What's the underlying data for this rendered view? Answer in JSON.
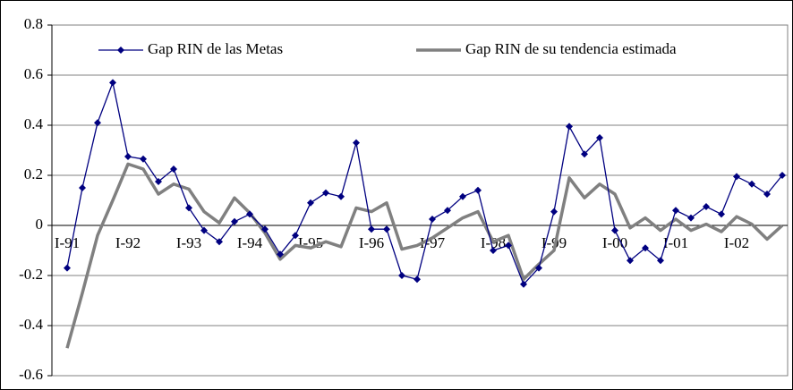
{
  "chart_data": {
    "type": "line",
    "categories": [
      "I-91",
      null,
      null,
      null,
      "I-92",
      null,
      null,
      null,
      "I-93",
      null,
      null,
      null,
      "I-94",
      null,
      null,
      null,
      "I-95",
      null,
      null,
      null,
      "I-96",
      null,
      null,
      null,
      "I-97",
      null,
      null,
      null,
      "I-98",
      null,
      null,
      null,
      "I-99",
      null,
      null,
      null,
      "I-00",
      null,
      null,
      null,
      "I-01",
      null,
      null,
      null,
      "I-02",
      null,
      null,
      null
    ],
    "series": [
      {
        "name": "Gap RIN de las Metas",
        "color": "#000080",
        "values": [
          -0.17,
          0.15,
          0.41,
          0.57,
          0.275,
          0.265,
          0.175,
          0.225,
          0.07,
          -0.02,
          -0.065,
          0.015,
          0.045,
          -0.015,
          -0.115,
          -0.04,
          0.09,
          0.13,
          0.115,
          0.33,
          -0.015,
          -0.015,
          -0.2,
          -0.215,
          0.025,
          0.06,
          0.115,
          0.14,
          -0.1,
          -0.08,
          -0.235,
          -0.17,
          0.055,
          0.395,
          0.285,
          0.35,
          -0.02,
          -0.14,
          -0.09,
          -0.14,
          0.06,
          0.03,
          0.075,
          0.045,
          0.195,
          0.165,
          0.125,
          0.2
        ]
      },
      {
        "name": "Gap RIN de su tendencia estimada",
        "color": "#808080",
        "values": [
          -0.49,
          -0.27,
          -0.04,
          0.1,
          0.245,
          0.225,
          0.125,
          0.165,
          0.145,
          0.055,
          0.01,
          0.11,
          0.05,
          -0.03,
          -0.135,
          -0.08,
          -0.09,
          -0.065,
          -0.085,
          0.07,
          0.055,
          0.09,
          -0.095,
          -0.08,
          -0.05,
          -0.01,
          0.03,
          0.055,
          -0.065,
          -0.04,
          -0.215,
          -0.155,
          -0.1,
          0.19,
          0.11,
          0.165,
          0.125,
          -0.01,
          0.03,
          -0.02,
          0.025,
          -0.02,
          0.005,
          -0.025,
          0.035,
          0.005,
          -0.055,
          0.0
        ]
      }
    ],
    "ylim": [
      -0.6,
      0.8
    ],
    "yticks": [
      -0.6,
      -0.4,
      -0.2,
      0,
      0.2,
      0.4,
      0.6,
      0.8
    ],
    "grid": true,
    "legend": "top"
  }
}
